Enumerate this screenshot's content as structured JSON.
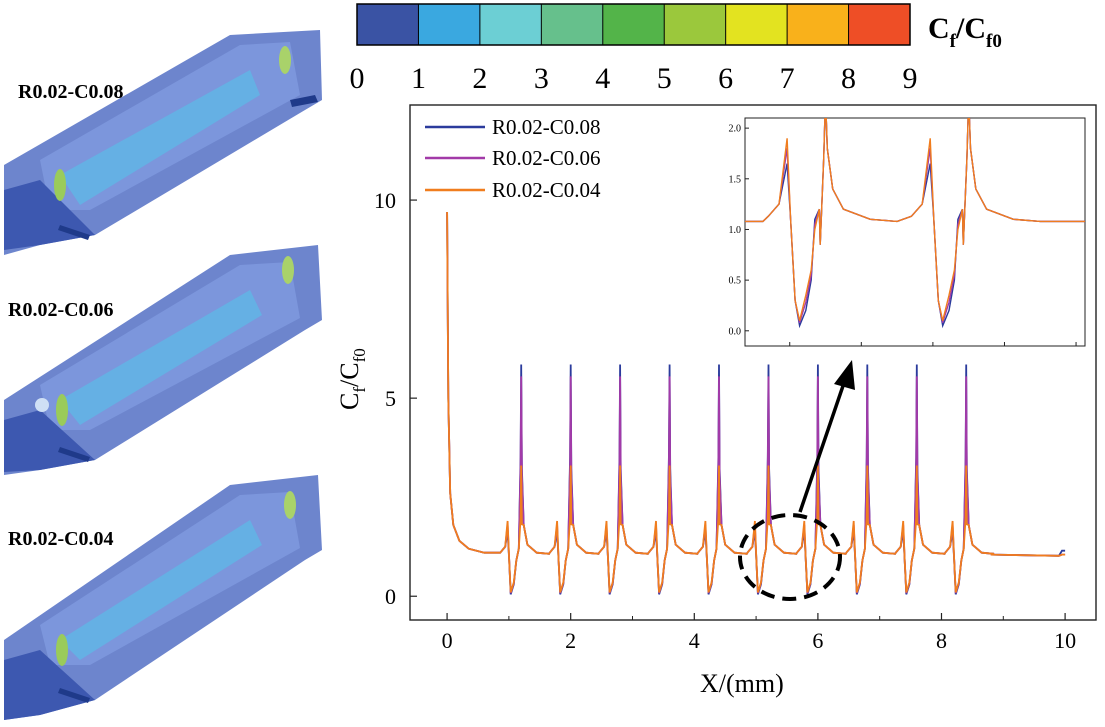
{
  "models": [
    {
      "label": "R0.02-C0.08"
    },
    {
      "label": "R0.02-C0.06"
    },
    {
      "label": "R0.02-C0.04"
    }
  ],
  "colorbar": {
    "title_main": "C",
    "title_sub1": "f",
    "title_slash": "/C",
    "title_sub2": "f0",
    "ticks": [
      "0",
      "1",
      "2",
      "3",
      "4",
      "5",
      "6",
      "7",
      "8",
      "9"
    ],
    "colors": [
      "#3a53a4",
      "#3aa8e0",
      "#6ccfd4",
      "#66c08c",
      "#53b449",
      "#9bc83c",
      "#e3e320",
      "#f9b11b",
      "#ee4e26"
    ]
  },
  "chart_data": {
    "type": "line",
    "title": "",
    "xlabel": "X/(mm)",
    "ylabel_main": "C",
    "ylabel_sub1": "f",
    "ylabel_slash": "/C",
    "ylabel_sub2": "f0",
    "xlim": [
      -0.6,
      10.5
    ],
    "ylim": [
      -0.6,
      12.4
    ],
    "xticks": [
      0,
      2,
      4,
      6,
      8,
      10
    ],
    "xtick_labels": [
      "0",
      "2",
      "4",
      "6",
      "8",
      "10"
    ],
    "yticks": [
      0,
      5,
      10
    ],
    "ytick_labels": [
      "0",
      "5",
      "10"
    ],
    "series": [
      {
        "name": "R0.02-C0.08",
        "color": "#2b3b9c",
        "peak": 5.85,
        "pre_peak": 1.65,
        "valley": 0.05,
        "tail": 1.15
      },
      {
        "name": "R0.02-C0.06",
        "color": "#a23aa8",
        "peak": 5.55,
        "pre_peak": 1.8,
        "valley": 0.08,
        "tail": 1.05
      },
      {
        "name": "R0.02-C0.04",
        "color": "#f07d1e",
        "peak": 3.3,
        "pre_peak": 1.9,
        "valley": 0.1,
        "tail": 1.05
      }
    ],
    "groove_positions": [
      1.0,
      1.8,
      2.6,
      3.4,
      4.2,
      5.0,
      5.8,
      6.6,
      7.4,
      8.2
    ],
    "peak_positions": [
      1.2,
      2.0,
      2.8,
      3.6,
      4.4,
      5.2,
      6.0,
      6.8,
      7.6,
      8.4
    ],
    "inlet_value": 9.7,
    "baseline": 1.05,
    "inset": {
      "ylim": [
        -0.15,
        2.1
      ],
      "yticks": [
        0.0,
        0.5,
        1.0,
        1.5,
        2.0
      ],
      "ytick_labels": [
        "0.0",
        "0.5",
        "1.0",
        "1.5",
        "2.0"
      ]
    }
  }
}
